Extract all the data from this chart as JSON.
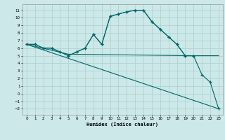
{
  "xlabel": "Humidex (Indice chaleur)",
  "bg_color": "#cce8e8",
  "grid_color": "#aacfcf",
  "line_color": "#006666",
  "xlim": [
    -0.5,
    23.5
  ],
  "ylim": [
    -2.8,
    11.8
  ],
  "xticks": [
    0,
    1,
    2,
    3,
    4,
    5,
    6,
    7,
    8,
    9,
    10,
    11,
    12,
    13,
    14,
    15,
    16,
    17,
    18,
    19,
    20,
    21,
    22,
    23
  ],
  "yticks": [
    -2,
    -1,
    0,
    1,
    2,
    3,
    4,
    5,
    6,
    7,
    8,
    9,
    10,
    11
  ],
  "line1_x": [
    0,
    1,
    2,
    3,
    4,
    5,
    6,
    7,
    8,
    9,
    10,
    11,
    12,
    13,
    14,
    15,
    16,
    17,
    18,
    19,
    20
  ],
  "line1_y": [
    6.5,
    6.5,
    6.0,
    6.0,
    5.5,
    5.0,
    5.5,
    6.0,
    7.8,
    6.5,
    10.2,
    10.5,
    10.8,
    11.0,
    11.0,
    9.5,
    8.5,
    7.5,
    6.5,
    5.0,
    5.0
  ],
  "line2_x": [
    0,
    1,
    2,
    3,
    4,
    5,
    6,
    7,
    8,
    9,
    10,
    11,
    12,
    13,
    14,
    15,
    16,
    17,
    18,
    19,
    20,
    21,
    22,
    23
  ],
  "line2_y": [
    6.5,
    6.5,
    6.0,
    6.0,
    5.5,
    5.0,
    5.5,
    6.0,
    7.8,
    6.5,
    10.2,
    10.5,
    10.8,
    11.0,
    11.0,
    9.5,
    8.5,
    7.5,
    6.5,
    5.0,
    5.0,
    2.5,
    1.5,
    -2.0
  ],
  "line3_x": [
    0,
    5,
    20,
    23
  ],
  "line3_y": [
    6.5,
    5.2,
    5.0,
    5.0
  ],
  "line4_x": [
    0,
    23
  ],
  "line4_y": [
    6.5,
    -2.0
  ]
}
